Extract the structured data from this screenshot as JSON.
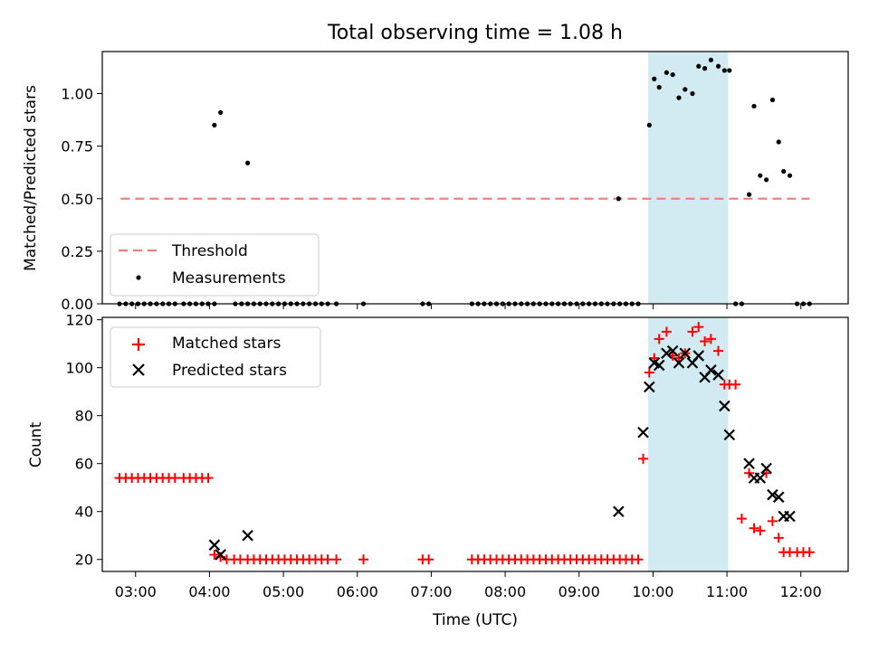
{
  "title": "Total observing time = 1.08 h",
  "colors": {
    "threshold": "#f08080",
    "measurement": "#000000",
    "matched": "#ff0000",
    "predicted": "#000000",
    "highlight": "#add8e6"
  },
  "chart_data": [
    {
      "type": "scatter",
      "panel": "top",
      "ylabel": "Matched/Predicted stars",
      "xlim_minutes": [
        2.55,
        12.64
      ],
      "ylim": [
        0,
        1.2
      ],
      "yticks": [
        0.0,
        0.25,
        0.5,
        0.75,
        1.0
      ],
      "ytick_labels": [
        "0.00",
        "0.25",
        "0.50",
        "0.75",
        "1.00"
      ],
      "highlight_span": [
        "09:56",
        "11:01"
      ],
      "legend": {
        "placement": "lower-left",
        "entries": [
          "Threshold",
          "Measurements"
        ]
      },
      "threshold": {
        "name": "Threshold",
        "value": 0.5,
        "x_range": [
          "02:48",
          "12:07"
        ]
      },
      "series": [
        {
          "name": "Measurements",
          "x": [
            "04:04",
            "04:09",
            "04:31",
            "09:32",
            "09:57",
            "10:01",
            "10:05",
            "10:11",
            "10:16",
            "10:21",
            "10:26",
            "10:32",
            "10:37",
            "10:42",
            "10:47",
            "10:53",
            "10:58",
            "11:02",
            "11:18",
            "11:22",
            "11:27",
            "11:32",
            "11:37",
            "11:42",
            "11:46",
            "11:51"
          ],
          "y": [
            0.85,
            0.91,
            0.67,
            0.5,
            0.85,
            1.07,
            1.03,
            1.1,
            1.09,
            0.98,
            1.02,
            1.0,
            1.13,
            1.12,
            1.16,
            1.13,
            1.11,
            1.11,
            0.52,
            0.94,
            0.61,
            0.59,
            0.97,
            0.77,
            0.63,
            0.61
          ]
        },
        {
          "name": "Measurements (zero)",
          "x": [
            "02:47",
            "02:52",
            "02:57",
            "03:02",
            "03:07",
            "03:12",
            "03:17",
            "03:22",
            "03:27",
            "03:32",
            "03:39",
            "03:44",
            "03:49",
            "03:54",
            "03:59",
            "04:04",
            "04:21",
            "04:26",
            "04:31",
            "04:36",
            "04:41",
            "04:46",
            "04:51",
            "04:56",
            "05:01",
            "05:06",
            "05:11",
            "05:16",
            "05:21",
            "05:26",
            "05:31",
            "05:36",
            "05:43",
            "06:05",
            "06:53",
            "06:58",
            "07:33",
            "07:38",
            "07:43",
            "07:48",
            "07:53",
            "07:58",
            "08:03",
            "08:08",
            "08:13",
            "08:18",
            "08:23",
            "08:28",
            "08:33",
            "08:38",
            "08:43",
            "08:48",
            "08:53",
            "08:58",
            "09:03",
            "09:08",
            "09:13",
            "09:18",
            "09:23",
            "09:28",
            "09:33",
            "09:38",
            "09:43",
            "09:48",
            "11:07",
            "11:12",
            "11:57",
            "12:02",
            "12:07"
          ],
          "y": [
            0,
            0,
            0,
            0,
            0,
            0,
            0,
            0,
            0,
            0,
            0,
            0,
            0,
            0,
            0,
            0,
            0,
            0,
            0,
            0,
            0,
            0,
            0,
            0,
            0,
            0,
            0,
            0,
            0,
            0,
            0,
            0,
            0,
            0,
            0,
            0,
            0,
            0,
            0,
            0,
            0,
            0,
            0,
            0,
            0,
            0,
            0,
            0,
            0,
            0,
            0,
            0,
            0,
            0,
            0,
            0,
            0,
            0,
            0,
            0,
            0,
            0,
            0,
            0,
            0,
            0,
            0,
            0,
            0
          ]
        }
      ]
    },
    {
      "type": "scatter",
      "panel": "bottom",
      "xlabel": "Time (UTC)",
      "ylabel": "Count",
      "ylim": [
        15,
        121
      ],
      "yticks": [
        20,
        40,
        60,
        80,
        100,
        120
      ],
      "xticks": [
        "03:00",
        "04:00",
        "05:00",
        "06:00",
        "07:00",
        "08:00",
        "09:00",
        "10:00",
        "11:00",
        "12:00"
      ],
      "highlight_span": [
        "09:56",
        "11:01"
      ],
      "legend": {
        "placement": "top-left",
        "entries": [
          "Matched stars",
          "Predicted stars"
        ]
      },
      "series": [
        {
          "name": "Matched stars",
          "marker": "+",
          "x": [
            "02:47",
            "02:52",
            "02:57",
            "03:02",
            "03:07",
            "03:12",
            "03:17",
            "03:22",
            "03:27",
            "03:32",
            "03:39",
            "03:44",
            "03:49",
            "03:54",
            "03:59",
            "04:04",
            "04:09",
            "04:14",
            "04:20",
            "04:25",
            "04:31",
            "04:36",
            "04:41",
            "04:46",
            "04:51",
            "04:56",
            "05:01",
            "05:06",
            "05:11",
            "05:16",
            "05:21",
            "05:26",
            "05:31",
            "05:36",
            "05:43",
            "06:05",
            "06:53",
            "06:58",
            "07:33",
            "07:38",
            "07:43",
            "07:48",
            "07:53",
            "07:58",
            "08:03",
            "08:08",
            "08:13",
            "08:18",
            "08:23",
            "08:28",
            "08:33",
            "08:38",
            "08:43",
            "08:48",
            "08:53",
            "08:58",
            "09:03",
            "09:08",
            "09:13",
            "09:18",
            "09:23",
            "09:28",
            "09:33",
            "09:38",
            "09:43",
            "09:48",
            "09:52",
            "09:57",
            "10:01",
            "10:05",
            "10:11",
            "10:16",
            "10:21",
            "10:26",
            "10:32",
            "10:37",
            "10:42",
            "10:47",
            "10:53",
            "10:58",
            "11:02",
            "11:07",
            "11:12",
            "11:18",
            "11:22",
            "11:27",
            "11:32",
            "11:37",
            "11:42",
            "11:46",
            "11:51",
            "11:57",
            "12:02",
            "12:07"
          ],
          "y": [
            54,
            54,
            54,
            54,
            54,
            54,
            54,
            54,
            54,
            54,
            54,
            54,
            54,
            54,
            54,
            22,
            21,
            20,
            20,
            20,
            20,
            20,
            20,
            20,
            20,
            20,
            20,
            20,
            20,
            20,
            20,
            20,
            20,
            20,
            20,
            20,
            20,
            20,
            20,
            20,
            20,
            20,
            20,
            20,
            20,
            20,
            20,
            20,
            20,
            20,
            20,
            20,
            20,
            20,
            20,
            20,
            20,
            20,
            20,
            20,
            20,
            20,
            20,
            20,
            20,
            20,
            62,
            98,
            104,
            112,
            115,
            105,
            104,
            106,
            115,
            117,
            111,
            112,
            107,
            93,
            93,
            93,
            37,
            56,
            33,
            32,
            56,
            36,
            29,
            23,
            23,
            23,
            23,
            23
          ]
        },
        {
          "name": "Predicted stars",
          "marker": "x",
          "x": [
            "04:04",
            "04:09",
            "04:31",
            "09:32",
            "09:52",
            "09:57",
            "10:01",
            "10:05",
            "10:11",
            "10:16",
            "10:21",
            "10:26",
            "10:32",
            "10:37",
            "10:42",
            "10:47",
            "10:53",
            "10:58",
            "11:02",
            "11:18",
            "11:22",
            "11:27",
            "11:32",
            "11:37",
            "11:42",
            "11:46",
            "11:51"
          ],
          "y": [
            26,
            22,
            30,
            40,
            73,
            92,
            102,
            101,
            106,
            107,
            102,
            106,
            102,
            105,
            96,
            99,
            97,
            84,
            72,
            60,
            54,
            54,
            58,
            47,
            46,
            38,
            38
          ]
        }
      ]
    }
  ]
}
